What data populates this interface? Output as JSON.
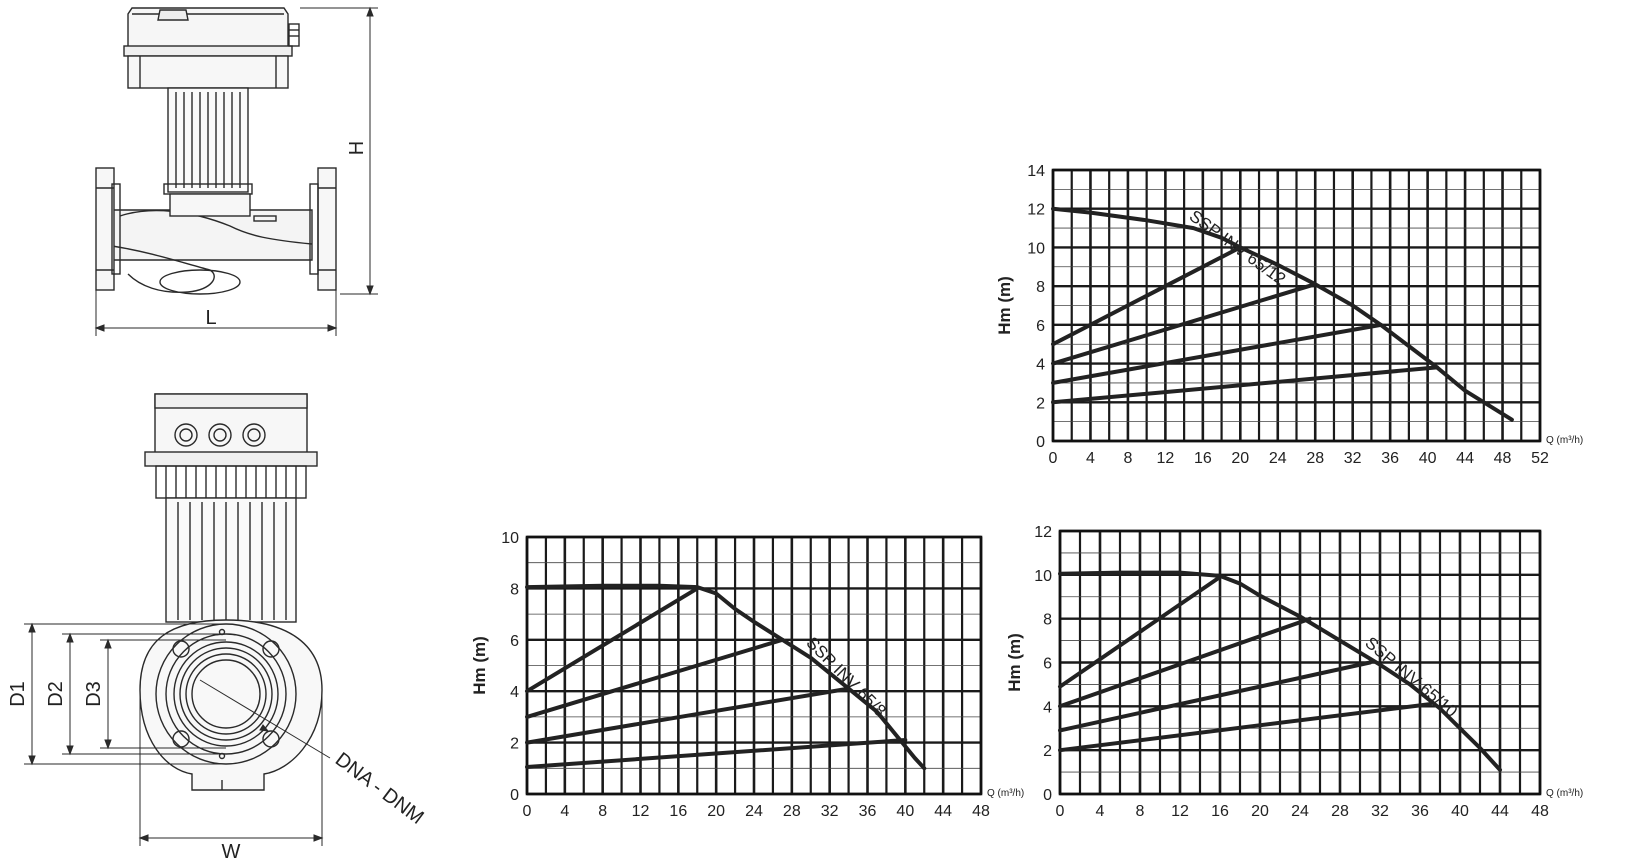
{
  "dimensions": {
    "h": "H",
    "l": "L",
    "w": "W",
    "d1": "D1",
    "d2": "D2",
    "d3": "D3",
    "dna": "DNA - DNM"
  },
  "chart_data": [
    {
      "type": "line",
      "title": "",
      "curve_label": "SSP INV 65/12",
      "xlabel": "Q (m³/h)",
      "ylabel": "Hm (m)",
      "xlim": [
        0,
        52
      ],
      "ylim": [
        0,
        14
      ],
      "x_ticks": [
        0,
        4,
        8,
        12,
        16,
        20,
        24,
        28,
        32,
        36,
        40,
        44,
        48,
        52
      ],
      "y_ticks": [
        0,
        2,
        4,
        6,
        8,
        10,
        12,
        14
      ],
      "series": [
        {
          "role": "pump-curve",
          "points": [
            [
              0,
              12
            ],
            [
              4,
              11.8
            ],
            [
              10,
              11.4
            ],
            [
              15,
              11
            ],
            [
              18,
              10.5
            ],
            [
              20,
              10
            ],
            [
              24,
              9.1
            ],
            [
              28,
              8.1
            ],
            [
              32,
              7
            ],
            [
              35,
              6
            ],
            [
              38,
              4.9
            ],
            [
              41,
              3.8
            ],
            [
              44,
              2.6
            ],
            [
              49,
              1.1
            ]
          ]
        },
        {
          "role": "system-curve",
          "points": [
            [
              0,
              5
            ],
            [
              20,
              10
            ]
          ]
        },
        {
          "role": "system-curve",
          "points": [
            [
              0,
              4
            ],
            [
              28,
              8.1
            ]
          ]
        },
        {
          "role": "system-curve",
          "points": [
            [
              0,
              3
            ],
            [
              35,
              6
            ]
          ]
        },
        {
          "role": "system-curve",
          "points": [
            [
              0,
              2
            ],
            [
              41,
              3.8
            ]
          ]
        }
      ]
    },
    {
      "type": "line",
      "title": "",
      "curve_label": "SSP INV 65/8",
      "xlabel": "Q (m³/h)",
      "ylabel": "Hm (m)",
      "xlim": [
        0,
        48
      ],
      "ylim": [
        0,
        10
      ],
      "x_ticks": [
        0,
        4,
        8,
        12,
        16,
        20,
        24,
        28,
        32,
        36,
        40,
        44,
        48
      ],
      "y_ticks": [
        0,
        2,
        4,
        6,
        8,
        10
      ],
      "series": [
        {
          "role": "pump-curve",
          "points": [
            [
              0,
              8.05
            ],
            [
              8,
              8.1
            ],
            [
              14,
              8.1
            ],
            [
              18,
              8.05
            ],
            [
              20,
              7.8
            ],
            [
              22,
              7.2
            ],
            [
              24,
              6.7
            ],
            [
              27,
              6
            ],
            [
              30,
              5.3
            ],
            [
              34,
              4.1
            ],
            [
              37,
              3.2
            ],
            [
              39,
              2.3
            ],
            [
              41,
              1.4
            ],
            [
              42,
              1
            ]
          ]
        },
        {
          "role": "system-curve",
          "points": [
            [
              0,
              4
            ],
            [
              18,
              8
            ]
          ]
        },
        {
          "role": "system-curve",
          "points": [
            [
              0,
              3
            ],
            [
              27,
              6
            ]
          ]
        },
        {
          "role": "system-curve",
          "points": [
            [
              0,
              2
            ],
            [
              34,
              4.1
            ]
          ]
        },
        {
          "role": "system-curve",
          "points": [
            [
              0,
              1.05
            ],
            [
              40,
              2.1
            ]
          ]
        }
      ]
    },
    {
      "type": "line",
      "title": "",
      "curve_label": "SSP INV 65/10",
      "xlabel": "Q (m³/h)",
      "ylabel": "Hm (m)",
      "xlim": [
        0,
        48
      ],
      "ylim": [
        0,
        12
      ],
      "x_ticks": [
        0,
        4,
        8,
        12,
        16,
        20,
        24,
        28,
        32,
        36,
        40,
        44,
        48
      ],
      "y_ticks": [
        0,
        2,
        4,
        6,
        8,
        10,
        12
      ],
      "series": [
        {
          "role": "pump-curve",
          "points": [
            [
              0,
              10.05
            ],
            [
              6,
              10.1
            ],
            [
              12,
              10.1
            ],
            [
              16,
              9.95
            ],
            [
              18,
              9.6
            ],
            [
              20,
              9.05
            ],
            [
              24,
              8.1
            ],
            [
              28,
              7
            ],
            [
              32,
              5.9
            ],
            [
              35,
              5
            ],
            [
              38,
              3.9
            ],
            [
              40,
              3
            ],
            [
              42,
              2.1
            ],
            [
              44,
              1.1
            ]
          ]
        },
        {
          "role": "system-curve",
          "points": [
            [
              0,
              4.9
            ],
            [
              16,
              9.9
            ]
          ]
        },
        {
          "role": "system-curve",
          "points": [
            [
              0,
              4
            ],
            [
              25,
              8
            ]
          ]
        },
        {
          "role": "system-curve",
          "points": [
            [
              0,
              2.9
            ],
            [
              31,
              6
            ]
          ]
        },
        {
          "role": "system-curve",
          "points": [
            [
              0,
              2
            ],
            [
              37,
              4.1
            ]
          ]
        }
      ]
    }
  ]
}
